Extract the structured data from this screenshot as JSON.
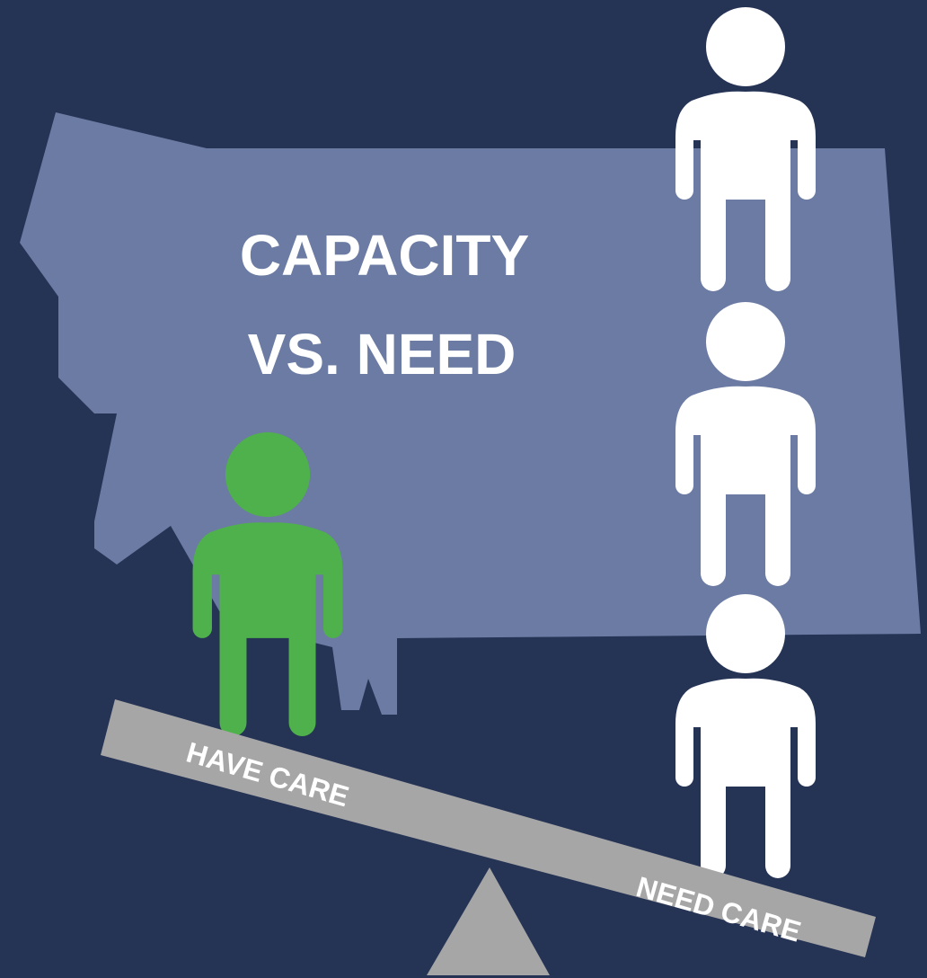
{
  "title": {
    "line1": "CAPACITY",
    "line2": "VS. NEED"
  },
  "seesaw": {
    "left_label": "HAVE CARE",
    "right_label": "NEED CARE"
  }
}
